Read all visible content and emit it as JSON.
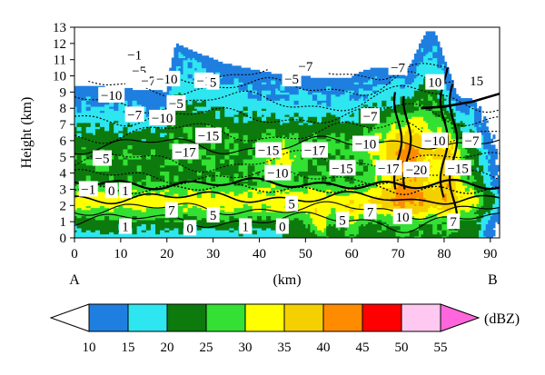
{
  "chart_data": {
    "type": "heatmap",
    "subtype": "radar-reflectivity-cross-section-with-temperature-contours",
    "xlabel": "(km)",
    "ylabel": "Height (km)",
    "xlim": [
      0,
      92
    ],
    "ylim": [
      0,
      13
    ],
    "x_ticks": [
      0,
      10,
      20,
      30,
      40,
      50,
      60,
      70,
      80,
      90
    ],
    "y_ticks": [
      0,
      1,
      2,
      3,
      4,
      5,
      6,
      7,
      8,
      9,
      10,
      11,
      12,
      13
    ],
    "endpoint_labels": {
      "start": "A",
      "end": "B"
    },
    "colorbar": {
      "unit": "(dBZ)",
      "ticks": [
        10,
        15,
        20,
        25,
        30,
        35,
        40,
        45,
        50,
        55
      ],
      "colors": [
        "#1f7fe0",
        "#2ee6f0",
        "#0d7a0d",
        "#33e033",
        "#ffff00",
        "#f5d000",
        "#ff8c00",
        "#ff0000",
        "#ffc8f0",
        "#ff66dd"
      ],
      "extend": "both"
    },
    "contour_labels": [
      {
        "text": "−1",
        "x": 13,
        "y": 11.3
      },
      {
        "text": "−5",
        "x": 14,
        "y": 10.3
      },
      {
        "text": "−7",
        "x": 16,
        "y": 9.7
      },
      {
        "text": "−10",
        "x": 20,
        "y": 9.8
      },
      {
        "text": "−1",
        "x": 28,
        "y": 9.7
      },
      {
        "text": "5",
        "x": 30,
        "y": 9.6
      },
      {
        "text": "−7",
        "x": 50,
        "y": 10.6
      },
      {
        "text": "−5",
        "x": 47,
        "y": 9.8
      },
      {
        "text": "−7",
        "x": 70,
        "y": 10.5
      },
      {
        "text": "10",
        "x": 78,
        "y": 9.6
      },
      {
        "text": "15",
        "x": 87,
        "y": 9.7
      },
      {
        "text": "−10",
        "x": 8,
        "y": 8.8
      },
      {
        "text": "−5",
        "x": 22,
        "y": 8.3
      },
      {
        "text": "−7",
        "x": 13,
        "y": 7.6
      },
      {
        "text": "−10",
        "x": 19,
        "y": 7.4
      },
      {
        "text": "−7",
        "x": 64,
        "y": 7.5
      },
      {
        "text": "−15",
        "x": 29,
        "y": 6.3
      },
      {
        "text": "−10",
        "x": 63,
        "y": 5.8
      },
      {
        "text": "−10",
        "x": 78,
        "y": 6.0
      },
      {
        "text": "−7",
        "x": 86,
        "y": 6.0
      },
      {
        "text": "−17",
        "x": 24,
        "y": 5.3
      },
      {
        "text": "−15",
        "x": 42,
        "y": 5.4
      },
      {
        "text": "−17",
        "x": 52,
        "y": 5.4
      },
      {
        "text": "−5",
        "x": 6,
        "y": 4.9
      },
      {
        "text": "−15",
        "x": 58,
        "y": 4.3
      },
      {
        "text": "−17",
        "x": 68,
        "y": 4.3
      },
      {
        "text": "−20",
        "x": 74,
        "y": 4.2
      },
      {
        "text": "−15",
        "x": 83,
        "y": 4.3
      },
      {
        "text": "−10",
        "x": 44,
        "y": 4.0
      },
      {
        "text": "−1",
        "x": 3,
        "y": 3.0
      },
      {
        "text": "0",
        "x": 8,
        "y": 2.9
      },
      {
        "text": "1",
        "x": 11,
        "y": 2.9
      },
      {
        "text": "5",
        "x": 47,
        "y": 2.1
      },
      {
        "text": "7",
        "x": 21,
        "y": 1.7
      },
      {
        "text": "5",
        "x": 30,
        "y": 1.4
      },
      {
        "text": "7",
        "x": 64,
        "y": 1.6
      },
      {
        "text": "10",
        "x": 71,
        "y": 1.3
      },
      {
        "text": "5",
        "x": 58,
        "y": 1.1
      },
      {
        "text": "1",
        "x": 11,
        "y": 0.7
      },
      {
        "text": "0",
        "x": 25,
        "y": 0.6
      },
      {
        "text": "1",
        "x": 37,
        "y": 0.7
      },
      {
        "text": "0",
        "x": 45,
        "y": 0.7
      },
      {
        "text": "7",
        "x": 82,
        "y": 1.0
      }
    ],
    "grid": false,
    "legend": "bottom"
  }
}
